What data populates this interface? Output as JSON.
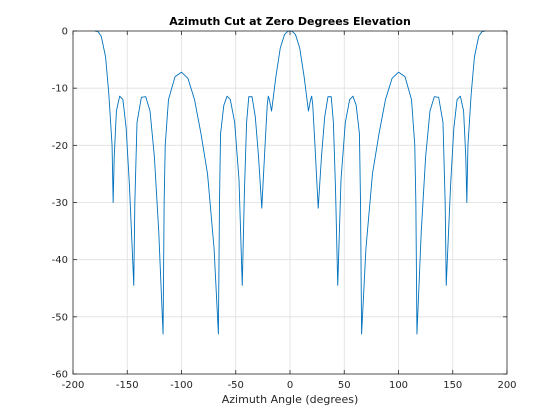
{
  "chart_data": {
    "type": "line",
    "title": "Azimuth Cut at Zero Degrees Elevation",
    "xlabel": "Azimuth Angle (degrees)",
    "ylabel": "",
    "xlim": [
      -200,
      200
    ],
    "ylim": [
      -60,
      0
    ],
    "xticks": [
      -200,
      -150,
      -100,
      -50,
      0,
      50,
      100,
      150,
      200
    ],
    "yticks": [
      0,
      -10,
      -20,
      -30,
      -40,
      -50,
      -60
    ],
    "grid": true,
    "series": [
      {
        "name": "",
        "color": "#0072BD",
        "x": [
          -180,
          -177,
          -174,
          -170,
          -167,
          -164,
          -163,
          -162,
          -160,
          -157,
          -154,
          -151,
          -148,
          -145,
          -144,
          -143,
          -141,
          -137,
          -133,
          -129,
          -125,
          -121,
          -117,
          -116,
          -115,
          -112,
          -106,
          -100,
          -94,
          -88,
          -82,
          -76,
          -70,
          -66,
          -65,
          -64,
          -61,
          -58,
          -55,
          -51,
          -47,
          -44,
          -42,
          -40,
          -38,
          -35,
          -32,
          -29,
          -26,
          -23,
          -21,
          -20,
          -19,
          -17,
          -13,
          -9,
          -5,
          -2,
          0,
          2,
          5,
          9,
          13,
          17,
          19,
          20,
          21,
          23,
          26,
          29,
          32,
          35,
          38,
          40,
          42,
          44,
          47,
          51,
          55,
          58,
          61,
          64,
          65,
          66,
          70,
          76,
          82,
          88,
          94,
          100,
          106,
          112,
          115,
          116,
          117,
          121,
          125,
          129,
          133,
          137,
          141,
          143,
          144,
          145,
          148,
          151,
          154,
          157,
          160,
          162,
          163,
          164,
          167,
          170,
          174,
          177,
          180
        ],
        "y": [
          0,
          -0.1,
          -0.9,
          -4.5,
          -11,
          -20,
          -30,
          -22,
          -14,
          -11.4,
          -12,
          -17,
          -27,
          -40,
          -44.5,
          -30,
          -16,
          -11.6,
          -11.5,
          -14,
          -22,
          -35,
          -53,
          -30,
          -20,
          -12,
          -8,
          -7.2,
          -8.3,
          -12,
          -18,
          -25,
          -38,
          -53,
          -30,
          -18,
          -13,
          -11.4,
          -12,
          -16,
          -26,
          -44.5,
          -28,
          -16,
          -11.5,
          -11.5,
          -15,
          -22,
          -31,
          -20,
          -13,
          -11.4,
          -12,
          -14,
          -8,
          -3,
          -0.6,
          -0.05,
          0,
          -0.05,
          -0.6,
          -3,
          -8,
          -14,
          -12,
          -11.4,
          -13,
          -20,
          -31,
          -22,
          -15,
          -11.5,
          -11.5,
          -16,
          -28,
          -44.5,
          -26,
          -16,
          -12,
          -11.4,
          -13,
          -18,
          -30,
          -53,
          -38,
          -25,
          -18,
          -12,
          -8.3,
          -7.2,
          -8,
          -12,
          -20,
          -30,
          -53,
          -35,
          -22,
          -14,
          -11.5,
          -11.6,
          -16,
          -30,
          -44.5,
          -40,
          -27,
          -17,
          -12,
          -11.4,
          -14,
          -22,
          -30,
          -20,
          -11,
          -4.5,
          -0.9,
          -0.1,
          0
        ]
      }
    ]
  }
}
